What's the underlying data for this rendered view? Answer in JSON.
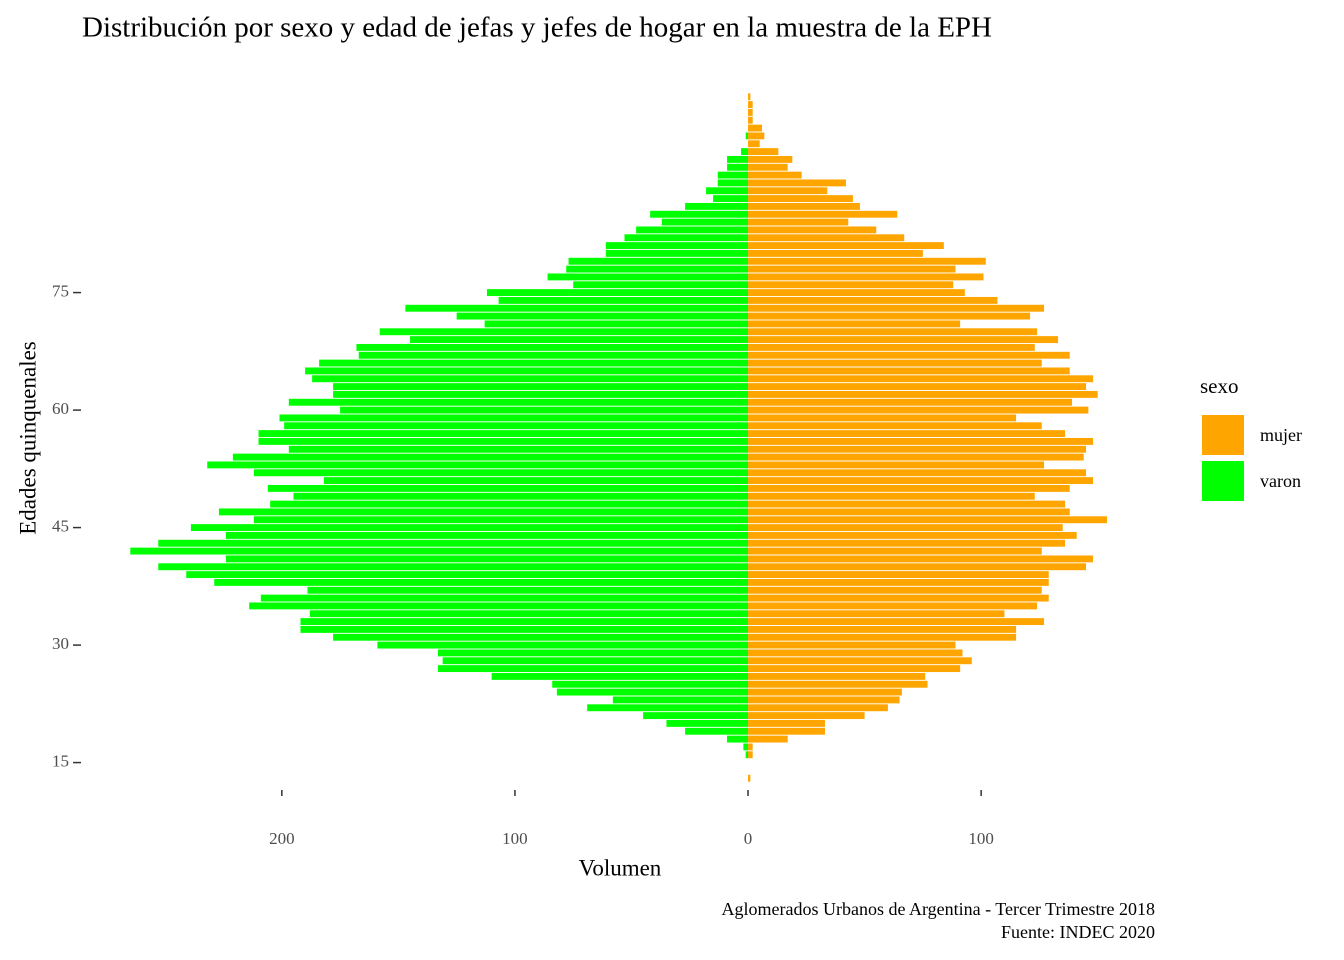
{
  "chart_data": {
    "type": "bar",
    "orientation": "horizontal",
    "title": "Distribución por sexo y edad de jefas y jefes de hogar en la muestra de la EPH",
    "x_label": "Volumen",
    "y_label": "Edades quinquenales",
    "caption": [
      "Aglomerados Urbanos de Argentina - Tercer Trimestre 2018",
      "Fuente: INDEC 2020"
    ],
    "legend_title": "sexo",
    "legend_position": "right",
    "y": [
      13,
      16,
      17,
      18,
      19,
      20,
      21,
      22,
      23,
      24,
      25,
      26,
      27,
      28,
      29,
      30,
      31,
      32,
      33,
      34,
      35,
      36,
      37,
      38,
      39,
      40,
      41,
      42,
      43,
      44,
      45,
      46,
      47,
      48,
      49,
      50,
      51,
      52,
      53,
      54,
      55,
      56,
      57,
      58,
      59,
      60,
      61,
      62,
      63,
      64,
      65,
      66,
      67,
      68,
      69,
      70,
      71,
      72,
      73,
      74,
      75,
      76,
      77,
      78,
      79,
      80,
      81,
      82,
      83,
      84,
      85,
      86,
      87,
      88,
      89,
      90,
      91,
      92,
      93,
      94,
      95,
      96,
      97,
      98,
      99,
      100
    ],
    "series": [
      {
        "name": "mujer",
        "color": "#FFA500",
        "values": [
          1,
          2,
          2,
          17,
          33,
          33,
          50,
          60,
          65,
          66,
          77,
          76,
          91,
          96,
          92,
          89,
          115,
          115,
          127,
          110,
          124,
          129,
          126,
          129,
          129,
          145,
          148,
          126,
          136,
          141,
          135,
          154,
          138,
          136,
          123,
          138,
          148,
          145,
          127,
          144,
          145,
          148,
          136,
          126,
          115,
          146,
          139,
          150,
          145,
          148,
          138,
          126,
          138,
          123,
          133,
          124,
          91,
          121,
          127,
          107,
          93,
          88,
          101,
          89,
          102,
          75,
          84,
          67,
          55,
          43,
          64,
          48,
          45,
          34,
          42,
          23,
          17,
          19,
          13,
          5,
          7,
          6,
          2,
          2,
          2,
          1
        ]
      },
      {
        "name": "varon",
        "color": "#00FF00",
        "values": [
          null,
          -1,
          -2,
          -9,
          -27,
          -35,
          -45,
          -69,
          -58,
          -82,
          -84,
          -110,
          -133,
          -131,
          -133,
          -159,
          -178,
          -192,
          -192,
          -188,
          -214,
          -209,
          -189,
          -229,
          -241,
          -253,
          -224,
          -265,
          -253,
          -224,
          -239,
          -212,
          -227,
          -205,
          -195,
          -206,
          -182,
          -212,
          -232,
          -221,
          -197,
          -210,
          -210,
          -199,
          -201,
          -175,
          -197,
          -178,
          -178,
          -187,
          -190,
          -184,
          -167,
          -168,
          -145,
          -158,
          -113,
          -125,
          -147,
          -107,
          -112,
          -75,
          -86,
          -78,
          -77,
          -61,
          -61,
          -53,
          -48,
          -37,
          -42,
          -27,
          -15,
          -18,
          -13,
          -13,
          -9,
          -9,
          -3,
          null,
          -1,
          null,
          null,
          null,
          null,
          null
        ]
      }
    ],
    "xlim": [
      -275,
      160
    ],
    "xticks": [
      {
        "value": -200,
        "label": "200"
      },
      {
        "value": -100,
        "label": "100"
      },
      0,
      100
    ],
    "ylim": [
      11.5,
      101.5
    ],
    "yticks": [
      15,
      30,
      45,
      60,
      75
    ],
    "grid": false
  }
}
